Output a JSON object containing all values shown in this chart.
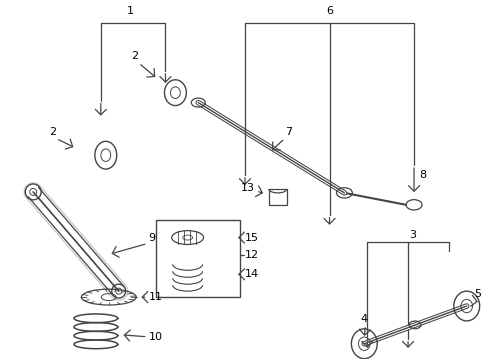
{
  "bg": "#ffffff",
  "lc": "#444444",
  "tc": "#000000",
  "fig_w": 4.89,
  "fig_h": 3.6,
  "dpi": 100
}
